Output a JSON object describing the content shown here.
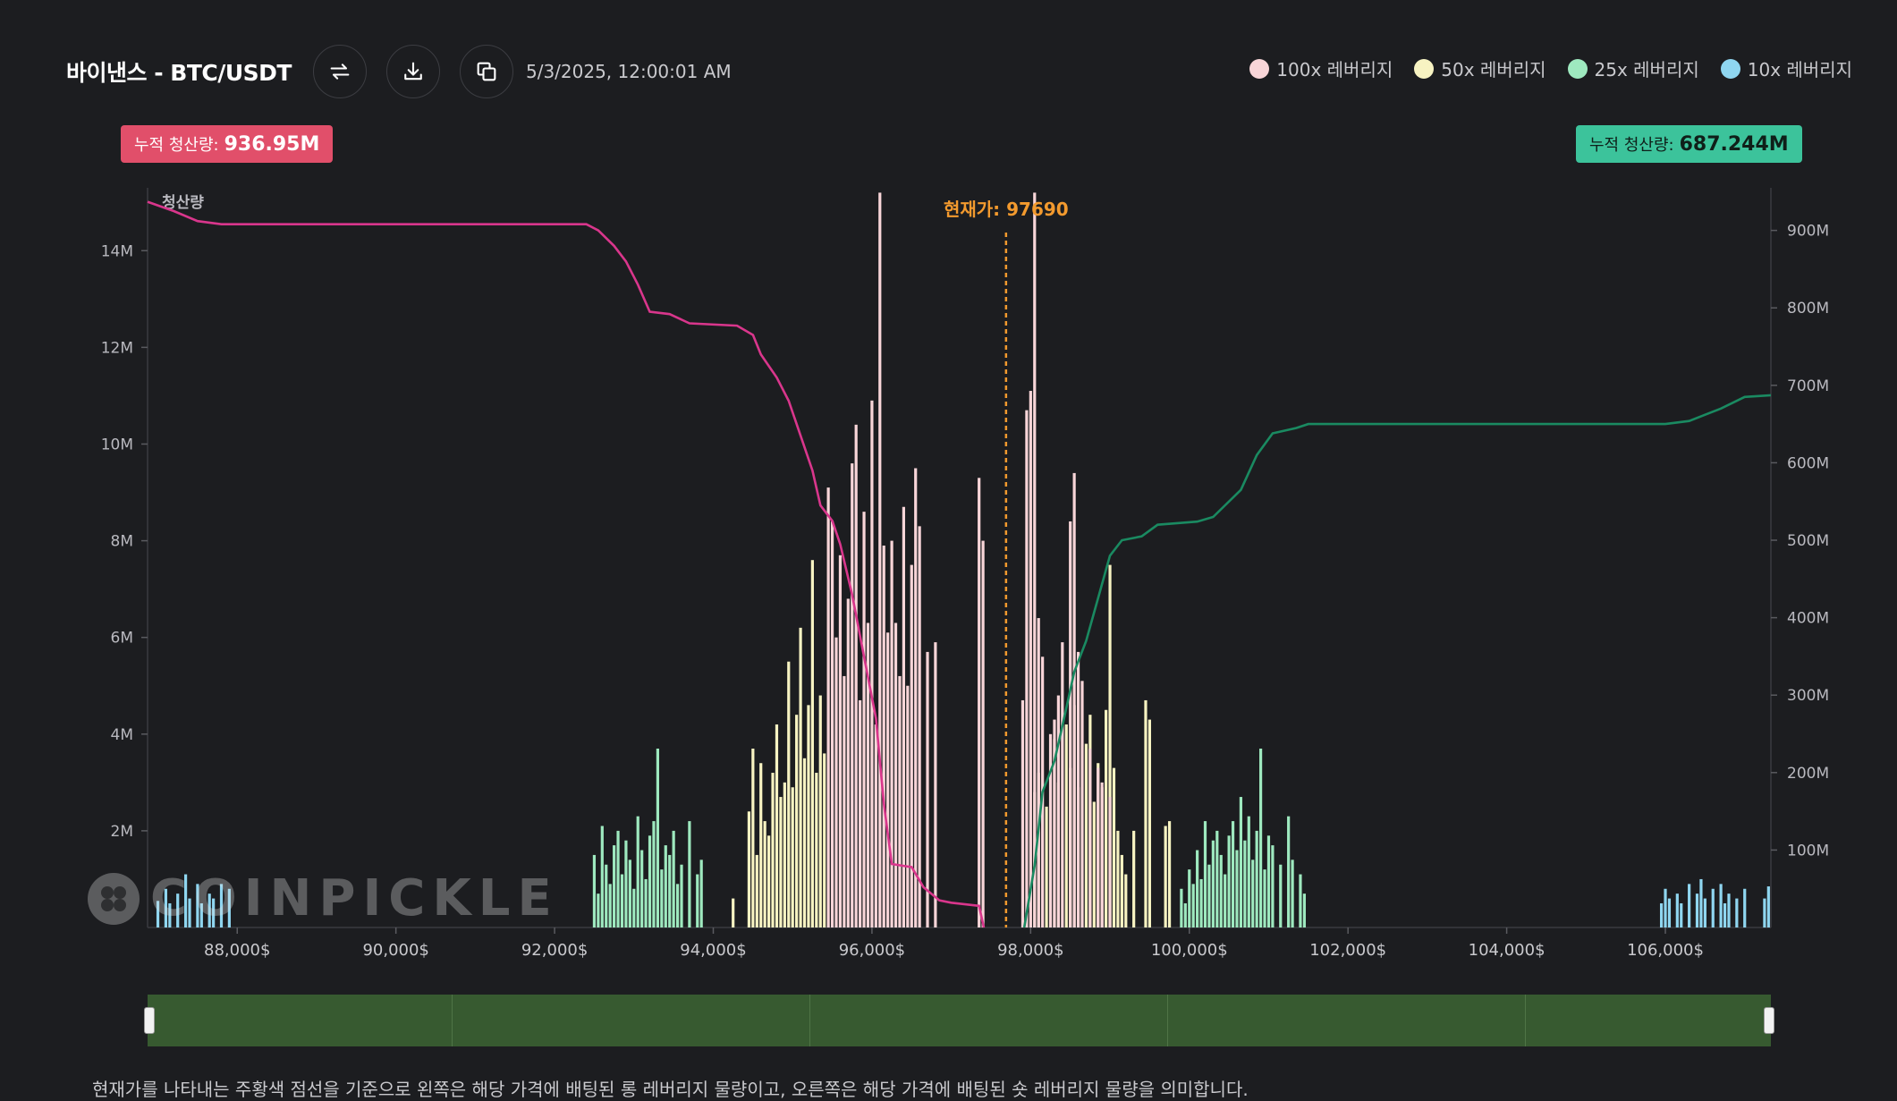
{
  "header": {
    "title": "바이낸스 - BTC/USDT",
    "timestamp": "5/3/2025, 12:00:01 AM",
    "buttons": [
      {
        "name": "refresh-button",
        "icon": "refresh-icon"
      },
      {
        "name": "download-button",
        "icon": "download-icon"
      },
      {
        "name": "copy-button",
        "icon": "copy-icon"
      }
    ]
  },
  "legend": [
    {
      "label": "100x 레버리지",
      "color": "#f8d5d8"
    },
    {
      "label": "50x 레버리지",
      "color": "#f7f3c2"
    },
    {
      "label": "25x 레버리지",
      "color": "#9ee9bf"
    },
    {
      "label": "10x 레버리지",
      "color": "#8fd6f0"
    }
  ],
  "badges": {
    "left_key": "누적 청산량:",
    "left_value": "936.95M",
    "right_key": "누적 청산량:",
    "right_value": "687.244M"
  },
  "watermark": "COINPICKLE",
  "footer_text": "현재가를 나타내는 주황색 점선을 기준으로 왼쪽은 해당 가격에 배팅된 롱 레버리지 물량이고, 오른쪽은 해당 가격에 배팅된 숏 레버리지 물량을 의미합니다.",
  "chart_data": {
    "type": "bar",
    "left_axis_label": "청산량",
    "current_price_label": "현재가: 97690",
    "current_price": 97690,
    "x_range": [
      86870,
      107330
    ],
    "x_ticks": [
      "88,000$",
      "90,000$",
      "92,000$",
      "94,000$",
      "96,000$",
      "98,000$",
      "100,000$",
      "102,000$",
      "104,000$",
      "106,000$"
    ],
    "x_tick_values": [
      88000,
      90000,
      92000,
      94000,
      96000,
      98000,
      100000,
      102000,
      104000,
      106000
    ],
    "ylim_left": [
      0,
      15300000
    ],
    "y_ticks_left": [
      "2M",
      "4M",
      "6M",
      "8M",
      "10M",
      "12M",
      "14M"
    ],
    "y_tick_values_left": [
      2000000,
      4000000,
      6000000,
      8000000,
      10000000,
      12000000,
      14000000
    ],
    "ylim_right": [
      0,
      955000000
    ],
    "y_ticks_right": [
      "100M",
      "200M",
      "300M",
      "400M",
      "500M",
      "600M",
      "700M",
      "800M",
      "900M"
    ],
    "y_tick_values_right": [
      100000000,
      200000000,
      300000000,
      400000000,
      500000000,
      600000000,
      700000000,
      800000000,
      900000000
    ],
    "bar_series": [
      {
        "name": "10x 레버리지",
        "color": "#8fd6f0",
        "bars": [
          [
            87000,
            0.55
          ],
          [
            87100,
            0.8
          ],
          [
            87150,
            0.5
          ],
          [
            87250,
            0.7
          ],
          [
            87350,
            1.1
          ],
          [
            87400,
            0.6
          ],
          [
            87500,
            0.9
          ],
          [
            87550,
            0.5
          ],
          [
            87650,
            0.7
          ],
          [
            87700,
            0.6
          ],
          [
            87800,
            0.9
          ],
          [
            87900,
            0.8
          ],
          [
            105950,
            0.5
          ],
          [
            106000,
            0.8
          ],
          [
            106050,
            0.6
          ],
          [
            106150,
            0.7
          ],
          [
            106200,
            0.5
          ],
          [
            106300,
            0.9
          ],
          [
            106400,
            0.7
          ],
          [
            106450,
            1.0
          ],
          [
            106500,
            0.6
          ],
          [
            106600,
            0.8
          ],
          [
            106700,
            0.9
          ],
          [
            106750,
            0.5
          ],
          [
            106800,
            0.7
          ],
          [
            106900,
            0.6
          ],
          [
            107000,
            0.8
          ],
          [
            107250,
            0.6
          ],
          [
            107300,
            0.85
          ]
        ]
      },
      {
        "name": "25x 레버리지",
        "color": "#9ee9bf",
        "bars": [
          [
            92500,
            1.5
          ],
          [
            92550,
            0.7
          ],
          [
            92600,
            2.1
          ],
          [
            92650,
            1.3
          ],
          [
            92700,
            0.9
          ],
          [
            92750,
            1.7
          ],
          [
            92800,
            2.0
          ],
          [
            92850,
            1.1
          ],
          [
            92900,
            1.8
          ],
          [
            92950,
            1.4
          ],
          [
            93000,
            0.8
          ],
          [
            93050,
            2.3
          ],
          [
            93100,
            1.6
          ],
          [
            93150,
            1.0
          ],
          [
            93200,
            1.9
          ],
          [
            93250,
            2.2
          ],
          [
            93300,
            3.7
          ],
          [
            93350,
            1.2
          ],
          [
            93400,
            1.7
          ],
          [
            93450,
            1.5
          ],
          [
            93500,
            2.0
          ],
          [
            93550,
            0.9
          ],
          [
            93600,
            1.3
          ],
          [
            93700,
            2.2
          ],
          [
            93800,
            1.1
          ],
          [
            93850,
            1.4
          ],
          [
            99900,
            0.8
          ],
          [
            99950,
            0.5
          ],
          [
            100000,
            1.2
          ],
          [
            100050,
            0.9
          ],
          [
            100100,
            1.6
          ],
          [
            100150,
            1.0
          ],
          [
            100200,
            2.2
          ],
          [
            100250,
            1.3
          ],
          [
            100300,
            1.8
          ],
          [
            100350,
            2.0
          ],
          [
            100400,
            1.5
          ],
          [
            100450,
            1.1
          ],
          [
            100500,
            1.9
          ],
          [
            100550,
            2.2
          ],
          [
            100600,
            1.6
          ],
          [
            100650,
            2.7
          ],
          [
            100700,
            1.8
          ],
          [
            100750,
            2.3
          ],
          [
            100800,
            1.4
          ],
          [
            100850,
            2.0
          ],
          [
            100900,
            3.7
          ],
          [
            100950,
            1.2
          ],
          [
            101000,
            1.9
          ],
          [
            101050,
            1.7
          ],
          [
            101150,
            1.3
          ],
          [
            101250,
            2.3
          ],
          [
            101300,
            1.4
          ],
          [
            101400,
            1.1
          ],
          [
            101450,
            0.7
          ]
        ]
      },
      {
        "name": "50x 레버리지",
        "color": "#f7f3c2",
        "bars": [
          [
            94250,
            0.6
          ],
          [
            94450,
            2.4
          ],
          [
            94500,
            3.7
          ],
          [
            94550,
            1.5
          ],
          [
            94600,
            3.4
          ],
          [
            94650,
            2.2
          ],
          [
            94700,
            1.9
          ],
          [
            94750,
            3.2
          ],
          [
            94800,
            4.2
          ],
          [
            94850,
            2.7
          ],
          [
            94900,
            3.0
          ],
          [
            94950,
            5.5
          ],
          [
            95000,
            2.9
          ],
          [
            95050,
            4.4
          ],
          [
            95100,
            6.2
          ],
          [
            95150,
            3.5
          ],
          [
            95200,
            4.6
          ],
          [
            95250,
            7.6
          ],
          [
            95300,
            3.2
          ],
          [
            95350,
            4.8
          ],
          [
            95400,
            3.6
          ],
          [
            98050,
            2.8
          ],
          [
            98100,
            3.2
          ],
          [
            98200,
            2.5
          ],
          [
            98300,
            3.9
          ],
          [
            98350,
            3.0
          ],
          [
            98450,
            4.2
          ],
          [
            98500,
            3.3
          ],
          [
            98550,
            4.6
          ],
          [
            98600,
            2.9
          ],
          [
            98700,
            3.8
          ],
          [
            98750,
            4.4
          ],
          [
            98800,
            2.6
          ],
          [
            98850,
            3.4
          ],
          [
            98900,
            2.9
          ],
          [
            98950,
            4.5
          ],
          [
            99000,
            7.5
          ],
          [
            99050,
            3.3
          ],
          [
            99100,
            2.0
          ],
          [
            99150,
            1.5
          ],
          [
            99200,
            1.1
          ],
          [
            99300,
            2.0
          ],
          [
            99450,
            4.7
          ],
          [
            99500,
            4.3
          ],
          [
            99700,
            2.1
          ],
          [
            99750,
            2.2
          ]
        ]
      },
      {
        "name": "100x 레버리지",
        "color": "#f8d5d8",
        "bars": [
          [
            95450,
            9.1
          ],
          [
            95500,
            8.4
          ],
          [
            95550,
            6.0
          ],
          [
            95600,
            7.7
          ],
          [
            95650,
            5.2
          ],
          [
            95700,
            6.8
          ],
          [
            95750,
            9.6
          ],
          [
            95800,
            10.4
          ],
          [
            95850,
            4.7
          ],
          [
            95900,
            8.6
          ],
          [
            95950,
            6.3
          ],
          [
            96000,
            10.9
          ],
          [
            96050,
            4.2
          ],
          [
            96100,
            15.2
          ],
          [
            96150,
            7.9
          ],
          [
            96200,
            6.1
          ],
          [
            96250,
            8.0
          ],
          [
            96300,
            6.3
          ],
          [
            96350,
            5.2
          ],
          [
            96400,
            8.7
          ],
          [
            96450,
            5.0
          ],
          [
            96500,
            7.5
          ],
          [
            96550,
            9.5
          ],
          [
            96600,
            8.3
          ],
          [
            96700,
            5.7
          ],
          [
            96800,
            5.9
          ],
          [
            97350,
            9.3
          ],
          [
            97400,
            8.0
          ],
          [
            97900,
            4.7
          ],
          [
            97950,
            10.7
          ],
          [
            98000,
            11.1
          ],
          [
            98050,
            15.2
          ],
          [
            98100,
            6.4
          ],
          [
            98150,
            5.6
          ],
          [
            98250,
            4.0
          ],
          [
            98300,
            4.3
          ],
          [
            98350,
            4.8
          ],
          [
            98400,
            5.9
          ],
          [
            98500,
            8.4
          ],
          [
            98550,
            9.4
          ],
          [
            98600,
            5.7
          ],
          [
            98650,
            5.1
          ],
          [
            98750,
            3.7
          ],
          [
            98850,
            3.3
          ],
          [
            98900,
            3.0
          ],
          [
            99000,
            2.7
          ]
        ]
      }
    ],
    "cumulative_series": [
      {
        "name": "롱 누적 청산량",
        "color": "#d9368c",
        "points": [
          [
            86870,
            936.95
          ],
          [
            87200,
            925
          ],
          [
            87500,
            912
          ],
          [
            87800,
            908
          ],
          [
            88500,
            908
          ],
          [
            90000,
            908
          ],
          [
            92000,
            908
          ],
          [
            92400,
            908
          ],
          [
            92550,
            900
          ],
          [
            92750,
            880
          ],
          [
            92900,
            860
          ],
          [
            93050,
            830
          ],
          [
            93200,
            795
          ],
          [
            93450,
            792
          ],
          [
            93700,
            780
          ],
          [
            94300,
            777
          ],
          [
            94500,
            765
          ],
          [
            94600,
            740
          ],
          [
            94800,
            710
          ],
          [
            94950,
            680
          ],
          [
            95100,
            635
          ],
          [
            95250,
            590
          ],
          [
            95350,
            545
          ],
          [
            95500,
            525
          ],
          [
            95600,
            495
          ],
          [
            95750,
            430
          ],
          [
            95900,
            350
          ],
          [
            96050,
            270
          ],
          [
            96150,
            160
          ],
          [
            96250,
            82
          ],
          [
            96500,
            78
          ],
          [
            96650,
            52
          ],
          [
            96850,
            35
          ],
          [
            97000,
            32
          ],
          [
            97350,
            28
          ],
          [
            97410,
            0
          ]
        ]
      },
      {
        "name": "숏 누적 청산량",
        "color": "#1a8a61",
        "points": [
          [
            97920,
            0
          ],
          [
            98050,
            80
          ],
          [
            98150,
            175
          ],
          [
            98300,
            215
          ],
          [
            98400,
            260
          ],
          [
            98550,
            330
          ],
          [
            98700,
            370
          ],
          [
            98850,
            425
          ],
          [
            99000,
            480
          ],
          [
            99150,
            500
          ],
          [
            99400,
            505
          ],
          [
            99600,
            520
          ],
          [
            100100,
            524
          ],
          [
            100300,
            530
          ],
          [
            100450,
            545
          ],
          [
            100650,
            565
          ],
          [
            100850,
            610
          ],
          [
            101050,
            638
          ],
          [
            101350,
            645
          ],
          [
            101500,
            650
          ],
          [
            102000,
            650
          ],
          [
            104000,
            650
          ],
          [
            106000,
            650
          ],
          [
            106300,
            654
          ],
          [
            106700,
            670
          ],
          [
            107000,
            685
          ],
          [
            107330,
            687.244
          ]
        ]
      }
    ]
  }
}
